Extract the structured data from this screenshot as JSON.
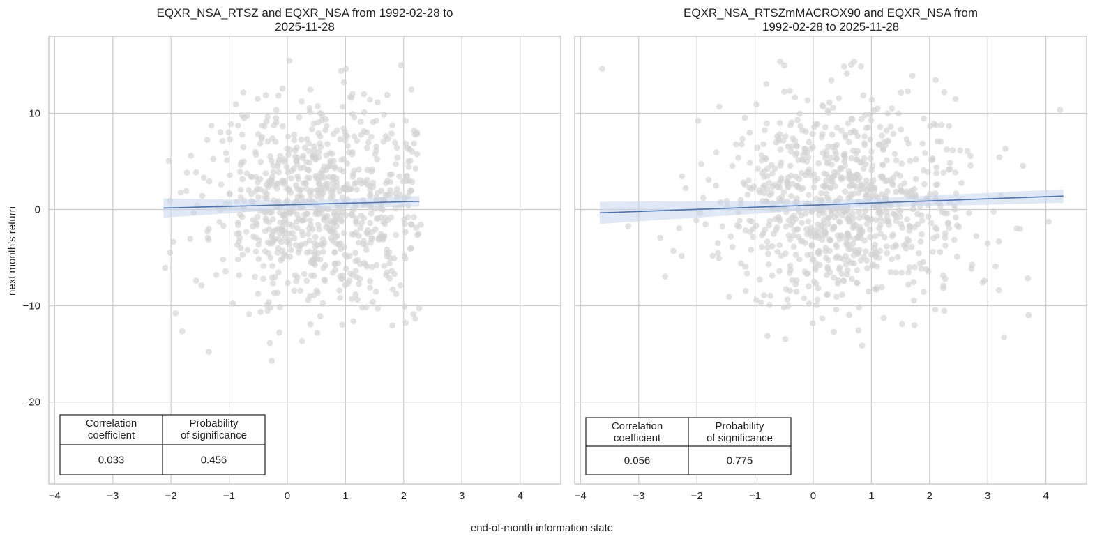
{
  "figure": {
    "xlabel": "end-of-month information state",
    "ylabel": "next month's return"
  },
  "chart_data": [
    {
      "type": "scatter",
      "title": [
        "EQXR_NSA_RTSZ and EQXR_NSA from 1992-02-28 to",
        "2025-11-28"
      ],
      "xlim": [
        -4.1,
        4.7
      ],
      "ylim": [
        -28.5,
        18
      ],
      "xticks": [
        -4,
        -3,
        -2,
        -1,
        0,
        1,
        2,
        3,
        4
      ],
      "xtick_labels": [
        "−4",
        "−3",
        "−2",
        "−1",
        "0",
        "1",
        "2",
        "3",
        "4"
      ],
      "yticks": [
        10,
        0,
        -10,
        -20
      ],
      "ytick_labels": [
        "10",
        "0",
        "−10",
        "−20"
      ],
      "grid": true,
      "point_count": 820,
      "point_color": "#d3d3d3",
      "x_range": [
        -2.15,
        2.3
      ],
      "x_center": 0.55,
      "x_spread": 0.95,
      "y_center": 0.4,
      "y_spread": 5.5,
      "x_data_low": -2.15,
      "x_data_high": 2.3,
      "regression": {
        "x": [
          -2.13,
          2.27
        ],
        "y": [
          0.15,
          0.85
        ],
        "ci": [
          1.0,
          0.45,
          0.55
        ],
        "color": "#4c72b0",
        "band_color": "#c9d6ec"
      },
      "stats_table": {
        "headers": [
          [
            "Correlation",
            "coefficient"
          ],
          [
            "Probability",
            "of significance"
          ]
        ],
        "values": [
          "0.033",
          "0.456"
        ]
      }
    },
    {
      "type": "scatter",
      "title": [
        "EQXR_NSA_RTSZmMACROX90 and EQXR_NSA from",
        "1992-02-28 to 2025-11-28"
      ],
      "xlim": [
        -4.1,
        4.7
      ],
      "ylim": [
        -28.5,
        18
      ],
      "xticks": [
        -4,
        -3,
        -2,
        -1,
        0,
        1,
        2,
        3,
        4
      ],
      "xtick_labels": [
        "−4",
        "−3",
        "−2",
        "−1",
        "0",
        "1",
        "2",
        "3",
        "4"
      ],
      "yticks": [
        10,
        0,
        -10,
        -20
      ],
      "ytick_labels": [
        "10",
        "0",
        "−10",
        "−20"
      ],
      "grid": true,
      "point_count": 900,
      "point_color": "#d3d3d3",
      "x_range": [
        -3.7,
        4.35
      ],
      "x_center": 0.6,
      "x_spread": 1.1,
      "y_center": 0.4,
      "y_spread": 5.5,
      "x_data_low": -3.7,
      "x_data_high": 4.3,
      "regression": {
        "x": [
          -3.67,
          4.3
        ],
        "y": [
          -0.35,
          1.4
        ],
        "ci": [
          1.15,
          0.45,
          0.7
        ],
        "color": "#4c72b0",
        "band_color": "#c9d6ec"
      },
      "stats_table": {
        "headers": [
          [
            "Correlation",
            "coefficient"
          ],
          [
            "Probability",
            "of significance"
          ]
        ],
        "values": [
          "0.056",
          "0.775"
        ]
      }
    }
  ]
}
